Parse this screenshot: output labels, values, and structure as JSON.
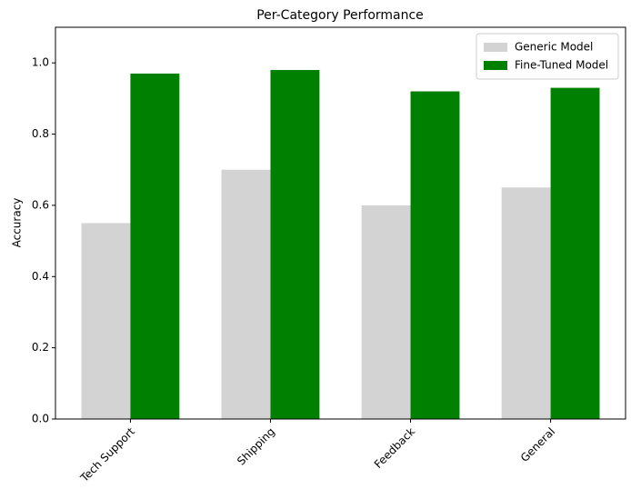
{
  "chart_data": {
    "type": "bar",
    "title": "Per-Category Performance",
    "y_label": "Accuracy",
    "categories": [
      "Tech Support",
      "Shipping",
      "Feedback",
      "General"
    ],
    "series": [
      {
        "name": "Generic Model",
        "color": "#d3d3d3",
        "values": [
          0.55,
          0.7,
          0.6,
          0.65
        ]
      },
      {
        "name": "Fine-Tuned Model",
        "color": "#008000",
        "values": [
          0.97,
          0.98,
          0.92,
          0.93
        ]
      }
    ],
    "ylim": [
      0,
      1.1
    ],
    "yticks": [
      {
        "value": 0,
        "label": "0.0"
      },
      0.2,
      0.4,
      0.6,
      0.8,
      {
        "value": 1,
        "label": "1.0"
      }
    ],
    "legend": "upper right"
  }
}
